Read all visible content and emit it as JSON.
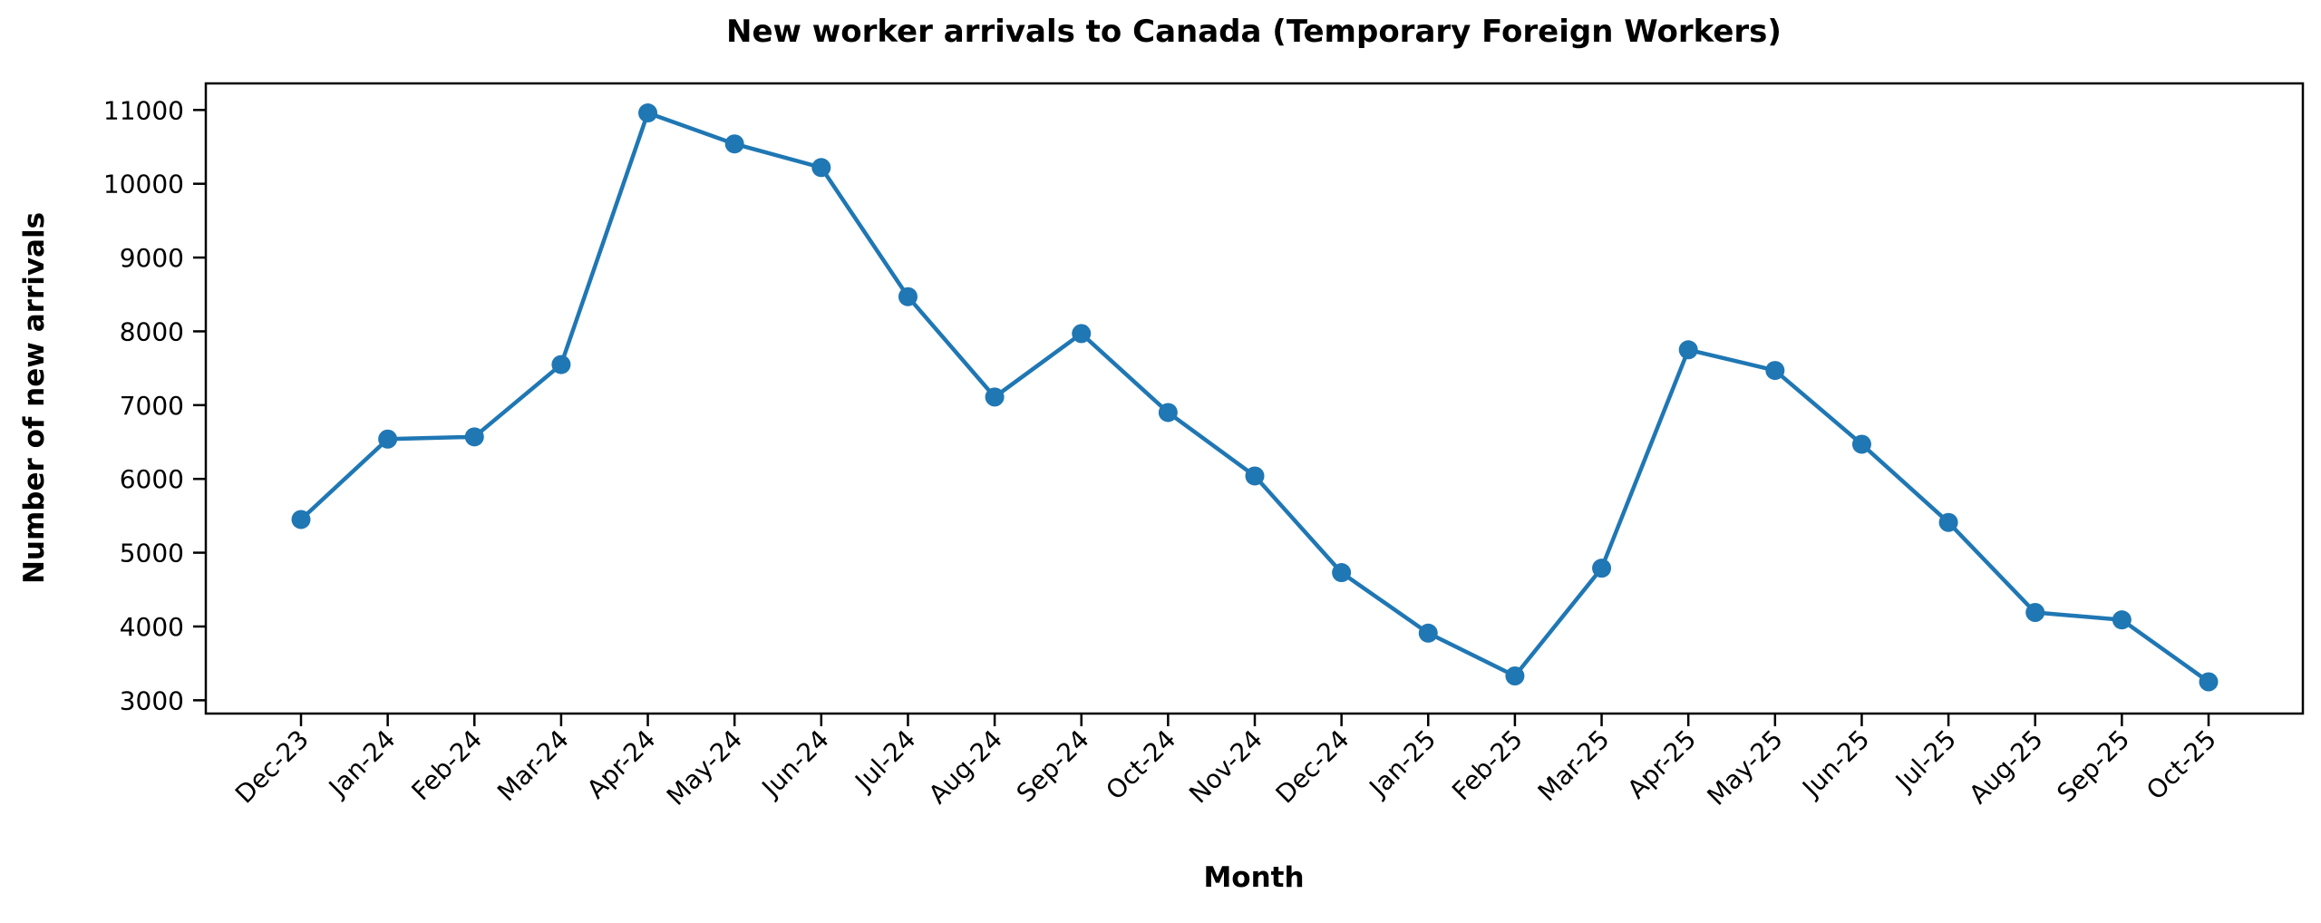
{
  "figure": {
    "title": "New worker arrivals to Canada (Temporary Foreign Workers)",
    "background_color": "#ffffff"
  },
  "chart_data": {
    "type": "line",
    "title": "New worker arrivals to Canada (Temporary Foreign Workers)",
    "xlabel": "Month",
    "ylabel": "Number of new arrivals",
    "categories": [
      "Dec-23",
      "Jan-24",
      "Feb-24",
      "Mar-24",
      "Apr-24",
      "May-24",
      "Jun-24",
      "Jul-24",
      "Aug-24",
      "Sep-24",
      "Oct-24",
      "Nov-24",
      "Dec-24",
      "Jan-25",
      "Feb-25",
      "Mar-25",
      "Apr-25",
      "May-25",
      "Jun-25",
      "Jul-25",
      "Aug-25",
      "Sep-25",
      "Oct-25"
    ],
    "values": [
      5450,
      6540,
      6570,
      7550,
      10960,
      10540,
      10220,
      8470,
      7110,
      7970,
      6900,
      6040,
      4730,
      3910,
      3330,
      4790,
      7750,
      7470,
      6470,
      5410,
      4190,
      4090,
      3250
    ],
    "yticks": [
      3000,
      4000,
      5000,
      6000,
      7000,
      8000,
      9000,
      10000,
      11000
    ],
    "ylim": [
      2820,
      11360
    ],
    "line_color": "#1f77b4",
    "marker": "o",
    "marker_color": "#1f77b4",
    "axis_color": "#000000",
    "grid": false,
    "legend": "none",
    "xtick_rotation": 45
  }
}
